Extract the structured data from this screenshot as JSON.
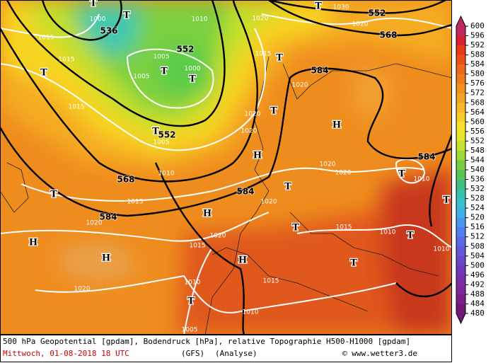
{
  "colorbar": {
    "labels": [
      600,
      596,
      592,
      588,
      584,
      580,
      576,
      572,
      568,
      564,
      560,
      556,
      552,
      548,
      544,
      540,
      536,
      532,
      528,
      524,
      520,
      516,
      512,
      508,
      504,
      500,
      496,
      492,
      488,
      484,
      480
    ],
    "colors": [
      "#c02860",
      "#d82030",
      "#e83818",
      "#ec5018",
      "#ee6818",
      "#f07c1c",
      "#f29020",
      "#f4a424",
      "#f6b826",
      "#f8cc28",
      "#f8e02a",
      "#e8e42c",
      "#c8e030",
      "#a0d838",
      "#78cc40",
      "#58c458",
      "#40c080",
      "#38c0a8",
      "#38c0d0",
      "#40b0e8",
      "#4898f0",
      "#5080f0",
      "#5868e8",
      "#6058d8",
      "#6848c8",
      "#7038b8",
      "#7830a8",
      "#802898",
      "#782088",
      "#701878"
    ]
  },
  "map": {
    "geopotential_labels": [
      536,
      552,
      552,
      568,
      584,
      584,
      584,
      584,
      568,
      552
    ],
    "pressure_labels": [
      1015,
      1015,
      1015,
      1000,
      1010,
      1020,
      1005,
      1005,
      1000,
      1005,
      1015,
      1020,
      1020,
      1020,
      1010,
      1015,
      1020,
      1020,
      1020,
      1020,
      1020,
      1015,
      1015,
      1010,
      1010,
      1010,
      1020,
      1010,
      1015,
      1010,
      1005,
      1030,
      1020
    ],
    "markers": [
      "T",
      "T",
      "T",
      "T",
      "T",
      "T",
      "T",
      "T",
      "T",
      "T",
      "T",
      "T",
      "T",
      "T",
      "T",
      "T",
      "T",
      "H",
      "H",
      "H",
      "H",
      "H",
      "H"
    ]
  },
  "footer": {
    "description": "500 hPa Geopotential [gpdam], Bodendruck [hPa], relative Topographie H500-H1000 [gpdam]",
    "date": "Mittwoch, 01-08-2018  18 UTC",
    "model": "(GFS)",
    "run": "(Analyse)",
    "credit": "© www.wetter3.de"
  }
}
